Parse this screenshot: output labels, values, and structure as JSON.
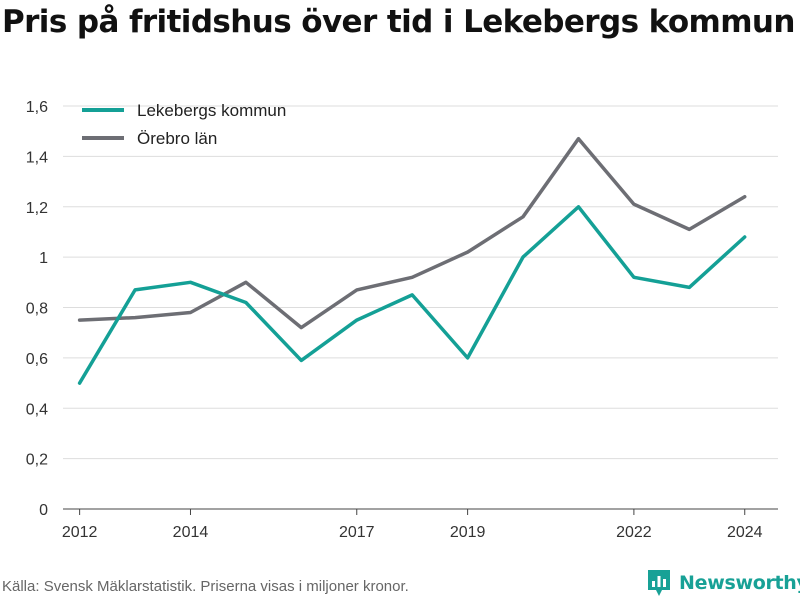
{
  "title": "Pris på fritidshus över tid i Lekebergs kommun",
  "source": "Källa: Svensk Mäklarstatistik. Priserna visas i miljoner kronor.",
  "brand": {
    "name": "Newsworthy",
    "icon": "bar-chart-logo-icon",
    "color": "#18a196"
  },
  "chart_data": {
    "type": "line",
    "title": "Pris på fritidshus över tid i Lekebergs kommun",
    "x": [
      2012,
      2013,
      2014,
      2015,
      2016,
      2017,
      2018,
      2019,
      2020,
      2021,
      2022,
      2023,
      2024
    ],
    "x_tick_values": [
      2012,
      2014,
      2017,
      2019,
      2022,
      2024
    ],
    "x_tick_labels": [
      "2012",
      "2014",
      "2017",
      "2019",
      "2022",
      "2024"
    ],
    "xlim": [
      2011.7,
      2024.6
    ],
    "ylim": [
      0,
      1.6
    ],
    "y_tick_values": [
      0,
      0.2,
      0.4,
      0.6,
      0.8,
      1.0,
      1.2,
      1.4,
      1.6
    ],
    "y_tick_labels": [
      "0",
      "0,2",
      "0,4",
      "0,6",
      "0,8",
      "1",
      "1,2",
      "1,4",
      "1,6"
    ],
    "grid": true,
    "legend_position": "top-left",
    "series": [
      {
        "name": "Lekebergs kommun",
        "color": "#14a096",
        "values": [
          0.5,
          0.87,
          0.9,
          0.82,
          0.59,
          0.75,
          0.85,
          0.6,
          1.0,
          1.2,
          0.92,
          0.88,
          1.08
        ]
      },
      {
        "name": "Örebro län",
        "color": "#6d6e74",
        "values": [
          0.75,
          0.76,
          0.78,
          0.9,
          0.72,
          0.87,
          0.92,
          1.02,
          1.16,
          1.47,
          1.21,
          1.11,
          1.24
        ]
      }
    ]
  }
}
